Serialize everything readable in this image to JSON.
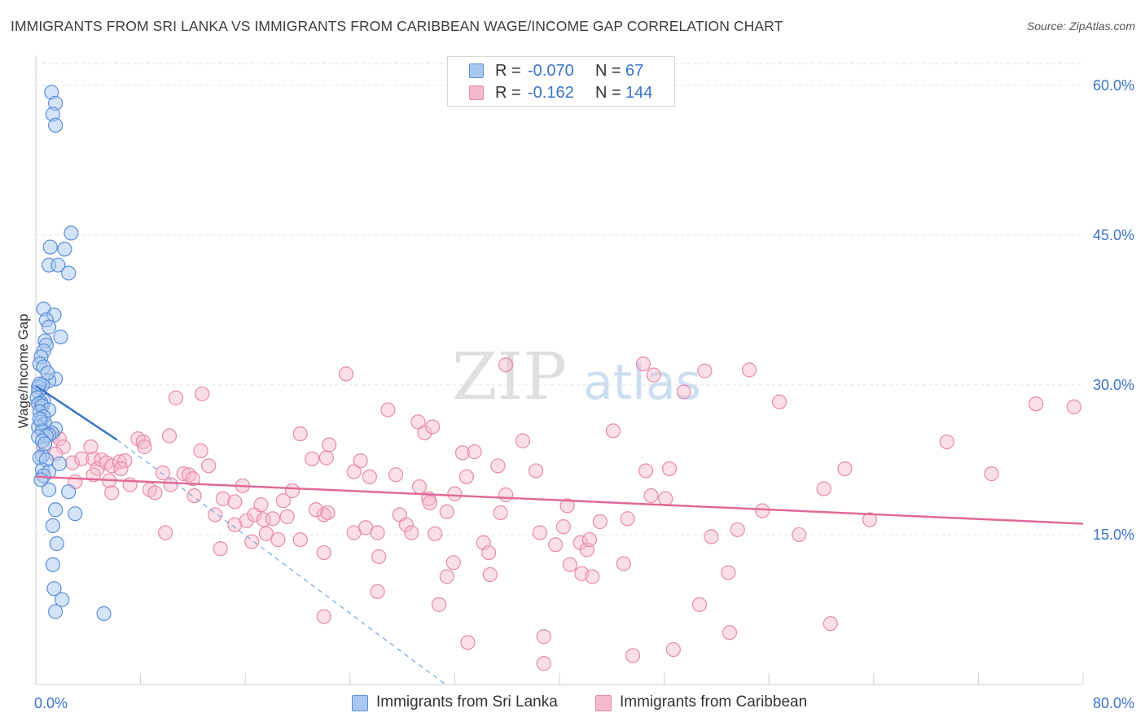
{
  "title": "IMMIGRANTS FROM SRI LANKA VS IMMIGRANTS FROM CARIBBEAN WAGE/INCOME GAP CORRELATION CHART",
  "source": "Source: ZipAtlas.com",
  "watermark": {
    "zip": "ZIP",
    "atlas": "atlas"
  },
  "legend": {
    "series1": {
      "r_label": "R =",
      "r_value": "-0.070",
      "n_label": "N =",
      "n_value": "67"
    },
    "series2": {
      "r_label": "R =",
      "r_value": "-0.162",
      "n_label": "N =",
      "n_value": "144"
    }
  },
  "bottom_legend": {
    "series1": "Immigrants from Sri Lanka",
    "series2": "Immigrants from Caribbean"
  },
  "colors": {
    "blue_fill": "#a9c8ef",
    "blue_stroke": "#5b8fd8",
    "blue_line": "#3b73c8",
    "pink_fill": "#f4b9cc",
    "pink_stroke": "#e68aa8",
    "pink_line": "#e0699a",
    "tick_text": "#3b73c8",
    "grid": "#e3e3e3"
  },
  "chart_data": {
    "type": "scatter",
    "title": "IMMIGRANTS FROM SRI LANKA VS IMMIGRANTS FROM CARIBBEAN WAGE/INCOME GAP CORRELATION CHART",
    "xlabel": "",
    "ylabel": "Wage/Income Gap",
    "xlim": [
      0,
      80
    ],
    "ylim": [
      0,
      63
    ],
    "x_tick_labels": [
      {
        "value": 0,
        "label": "0.0%"
      },
      {
        "value": 80,
        "label": "80.0%"
      }
    ],
    "y_ticks": [
      {
        "value": 15,
        "label": "15.0%"
      },
      {
        "value": 30,
        "label": "30.0%"
      },
      {
        "value": 45,
        "label": "45.0%"
      },
      {
        "value": 60,
        "label": "60.0%"
      }
    ],
    "series": [
      {
        "name": "Immigrants from Sri Lanka",
        "r": -0.07,
        "n": 67,
        "trend": {
          "x": [
            0,
            6.2
          ],
          "y": [
            29.9,
            24.5
          ]
        },
        "trend_dashed": {
          "x": [
            6.2,
            31.3
          ],
          "y": [
            24.5,
            0
          ]
        },
        "points": [
          [
            1.2,
            59.3
          ],
          [
            1.5,
            58.2
          ],
          [
            1.3,
            57.1
          ],
          [
            1.5,
            56
          ],
          [
            2.7,
            45.2
          ],
          [
            1.1,
            43.8
          ],
          [
            2.2,
            43.6
          ],
          [
            1.0,
            42
          ],
          [
            1.7,
            42
          ],
          [
            2.5,
            41.2
          ],
          [
            0.6,
            37.6
          ],
          [
            1.4,
            37
          ],
          [
            0.8,
            36.5
          ],
          [
            1.0,
            35.8
          ],
          [
            1.9,
            34.8
          ],
          [
            0.7,
            34.4
          ],
          [
            0.8,
            34
          ],
          [
            0.6,
            33.4
          ],
          [
            0.4,
            32.8
          ],
          [
            0.3,
            32.1
          ],
          [
            0.6,
            31.8
          ],
          [
            1.5,
            30.6
          ],
          [
            1.0,
            30.4
          ],
          [
            0.5,
            30
          ],
          [
            0.2,
            29.8
          ],
          [
            0.2,
            29.3
          ],
          [
            0.1,
            28.7
          ],
          [
            0.6,
            28.4
          ],
          [
            0.4,
            28.2
          ],
          [
            0.2,
            28.1
          ],
          [
            0.5,
            27.9
          ],
          [
            1.0,
            27.5
          ],
          [
            0.3,
            27.3
          ],
          [
            0.6,
            26.8
          ],
          [
            0.4,
            26.3
          ],
          [
            0.7,
            26.1
          ],
          [
            0.2,
            25.8
          ],
          [
            1.5,
            25.6
          ],
          [
            0.5,
            25.4
          ],
          [
            1.2,
            25.2
          ],
          [
            1.0,
            25
          ],
          [
            0.8,
            24.9
          ],
          [
            0.2,
            24.8
          ],
          [
            0.5,
            24.4
          ],
          [
            0.5,
            22.9
          ],
          [
            0.3,
            22.7
          ],
          [
            0.8,
            22.5
          ],
          [
            0.5,
            21.5
          ],
          [
            1.0,
            21.3
          ],
          [
            0.6,
            20.9
          ],
          [
            0.4,
            20.5
          ],
          [
            1.0,
            19.5
          ],
          [
            2.5,
            19.3
          ],
          [
            3.0,
            17.1
          ],
          [
            1.5,
            17.5
          ],
          [
            1.3,
            15.9
          ],
          [
            1.6,
            14.1
          ],
          [
            1.3,
            12
          ],
          [
            1.4,
            9.6
          ],
          [
            2.0,
            8.5
          ],
          [
            1.5,
            7.3
          ],
          [
            5.2,
            7.1
          ],
          [
            0.3,
            30.1
          ],
          [
            0.9,
            31.2
          ],
          [
            0.3,
            26.6
          ],
          [
            1.8,
            22.1
          ],
          [
            0.7,
            24.1
          ]
        ]
      },
      {
        "name": "Immigrants from Caribbean",
        "r": -0.162,
        "n": 144,
        "trend": {
          "x": [
            0,
            80
          ],
          "y": [
            20.8,
            16.1
          ]
        },
        "points": [
          [
            0.4,
            27.9
          ],
          [
            1.3,
            25
          ],
          [
            1.8,
            24.6
          ],
          [
            0.6,
            23.7
          ],
          [
            2.1,
            23.8
          ],
          [
            1.5,
            23.1
          ],
          [
            2.8,
            22.2
          ],
          [
            3.5,
            22.6
          ],
          [
            4.2,
            23.8
          ],
          [
            4.4,
            22.6
          ],
          [
            4.7,
            21.6
          ],
          [
            5.0,
            22.5
          ],
          [
            5.4,
            22.2
          ],
          [
            5.8,
            21.9
          ],
          [
            6.4,
            22.3
          ],
          [
            6.8,
            22.4
          ],
          [
            3.0,
            20.3
          ],
          [
            4.4,
            21.0
          ],
          [
            5.6,
            20.4
          ],
          [
            7.2,
            20.0
          ],
          [
            5.8,
            19.2
          ],
          [
            6.5,
            21.6
          ],
          [
            7.8,
            24.6
          ],
          [
            8.2,
            24.3
          ],
          [
            8.3,
            23.8
          ],
          [
            10.2,
            24.9
          ],
          [
            10.7,
            28.7
          ],
          [
            12.7,
            29.1
          ],
          [
            12.6,
            23.4
          ],
          [
            9.7,
            21.2
          ],
          [
            8.7,
            19.5
          ],
          [
            9.1,
            19.2
          ],
          [
            10.3,
            20.0
          ],
          [
            11.3,
            21.1
          ],
          [
            11.7,
            21.0
          ],
          [
            12.0,
            20.6
          ],
          [
            12.1,
            18.9
          ],
          [
            13.2,
            21.9
          ],
          [
            9.9,
            15.2
          ],
          [
            13.7,
            17.0
          ],
          [
            14.1,
            13.6
          ],
          [
            14.3,
            18.6
          ],
          [
            15.2,
            18.3
          ],
          [
            15.2,
            16.0
          ],
          [
            15.8,
            19.9
          ],
          [
            16.1,
            16.4
          ],
          [
            16.5,
            14.3
          ],
          [
            16.7,
            17.0
          ],
          [
            17.2,
            18.0
          ],
          [
            17.4,
            16.5
          ],
          [
            17.6,
            15.1
          ],
          [
            18.1,
            16.6
          ],
          [
            18.5,
            14.5
          ],
          [
            18.9,
            18.4
          ],
          [
            19.2,
            16.8
          ],
          [
            19.6,
            19.4
          ],
          [
            20.2,
            14.5
          ],
          [
            20.2,
            25.1
          ],
          [
            21.1,
            22.6
          ],
          [
            22.2,
            22.7
          ],
          [
            22.4,
            24.0
          ],
          [
            22.0,
            17.0
          ],
          [
            21.4,
            17.5
          ],
          [
            22.3,
            17.2
          ],
          [
            22.0,
            13.2
          ],
          [
            22.0,
            6.8
          ],
          [
            23.7,
            31.1
          ],
          [
            24.3,
            21.3
          ],
          [
            24.3,
            15.2
          ],
          [
            24.8,
            22.4
          ],
          [
            25.2,
            15.7
          ],
          [
            25.5,
            20.8
          ],
          [
            26.1,
            15.2
          ],
          [
            26.2,
            12.8
          ],
          [
            26.1,
            9.3
          ],
          [
            26.9,
            27.5
          ],
          [
            27.5,
            21.0
          ],
          [
            27.8,
            17.0
          ],
          [
            28.3,
            16.0
          ],
          [
            28.7,
            15.2
          ],
          [
            29.2,
            26.3
          ],
          [
            29.3,
            19.8
          ],
          [
            29.7,
            25.2
          ],
          [
            30.0,
            18.6
          ],
          [
            30.1,
            18.2
          ],
          [
            30.3,
            25.8
          ],
          [
            30.5,
            15.1
          ],
          [
            30.8,
            8.0
          ],
          [
            31.4,
            17.3
          ],
          [
            31.4,
            10.8
          ],
          [
            31.9,
            12.2
          ],
          [
            32.0,
            19.1
          ],
          [
            32.6,
            23.2
          ],
          [
            32.9,
            20.8
          ],
          [
            33.0,
            4.2
          ],
          [
            33.5,
            23.3
          ],
          [
            34.2,
            14.2
          ],
          [
            34.6,
            13.2
          ],
          [
            34.7,
            11.0
          ],
          [
            35.3,
            21.9
          ],
          [
            35.5,
            17.2
          ],
          [
            35.9,
            19.0
          ],
          [
            35.9,
            32.0
          ],
          [
            37.2,
            24.4
          ],
          [
            38.2,
            21.4
          ],
          [
            38.5,
            15.2
          ],
          [
            38.8,
            4.8
          ],
          [
            38.8,
            2.1
          ],
          [
            39.7,
            14.0
          ],
          [
            40.3,
            15.8
          ],
          [
            40.6,
            17.9
          ],
          [
            40.8,
            12.0
          ],
          [
            41.6,
            14.2
          ],
          [
            41.7,
            11.1
          ],
          [
            42.1,
            13.5
          ],
          [
            42.3,
            14.5
          ],
          [
            42.5,
            10.8
          ],
          [
            43.1,
            16.3
          ],
          [
            44.1,
            25.4
          ],
          [
            44.9,
            12.1
          ],
          [
            45.2,
            16.6
          ],
          [
            45.6,
            2.9
          ],
          [
            46.4,
            32.1
          ],
          [
            46.6,
            21.4
          ],
          [
            47.0,
            18.9
          ],
          [
            47.2,
            31.0
          ],
          [
            48.1,
            18.6
          ],
          [
            48.4,
            21.6
          ],
          [
            48.7,
            3.5
          ],
          [
            49.5,
            29.3
          ],
          [
            50.7,
            8.0
          ],
          [
            51.1,
            31.4
          ],
          [
            51.6,
            14.8
          ],
          [
            52.9,
            11.2
          ],
          [
            53.0,
            5.2
          ],
          [
            53.6,
            15.5
          ],
          [
            54.5,
            31.5
          ],
          [
            55.5,
            17.4
          ],
          [
            56.8,
            28.3
          ],
          [
            58.3,
            15.0
          ],
          [
            60.2,
            19.6
          ],
          [
            60.7,
            6.1
          ],
          [
            61.8,
            21.6
          ],
          [
            63.7,
            16.5
          ],
          [
            69.6,
            24.3
          ],
          [
            73.0,
            21.1
          ],
          [
            76.4,
            28.1
          ],
          [
            79.3,
            27.8
          ]
        ]
      }
    ]
  }
}
